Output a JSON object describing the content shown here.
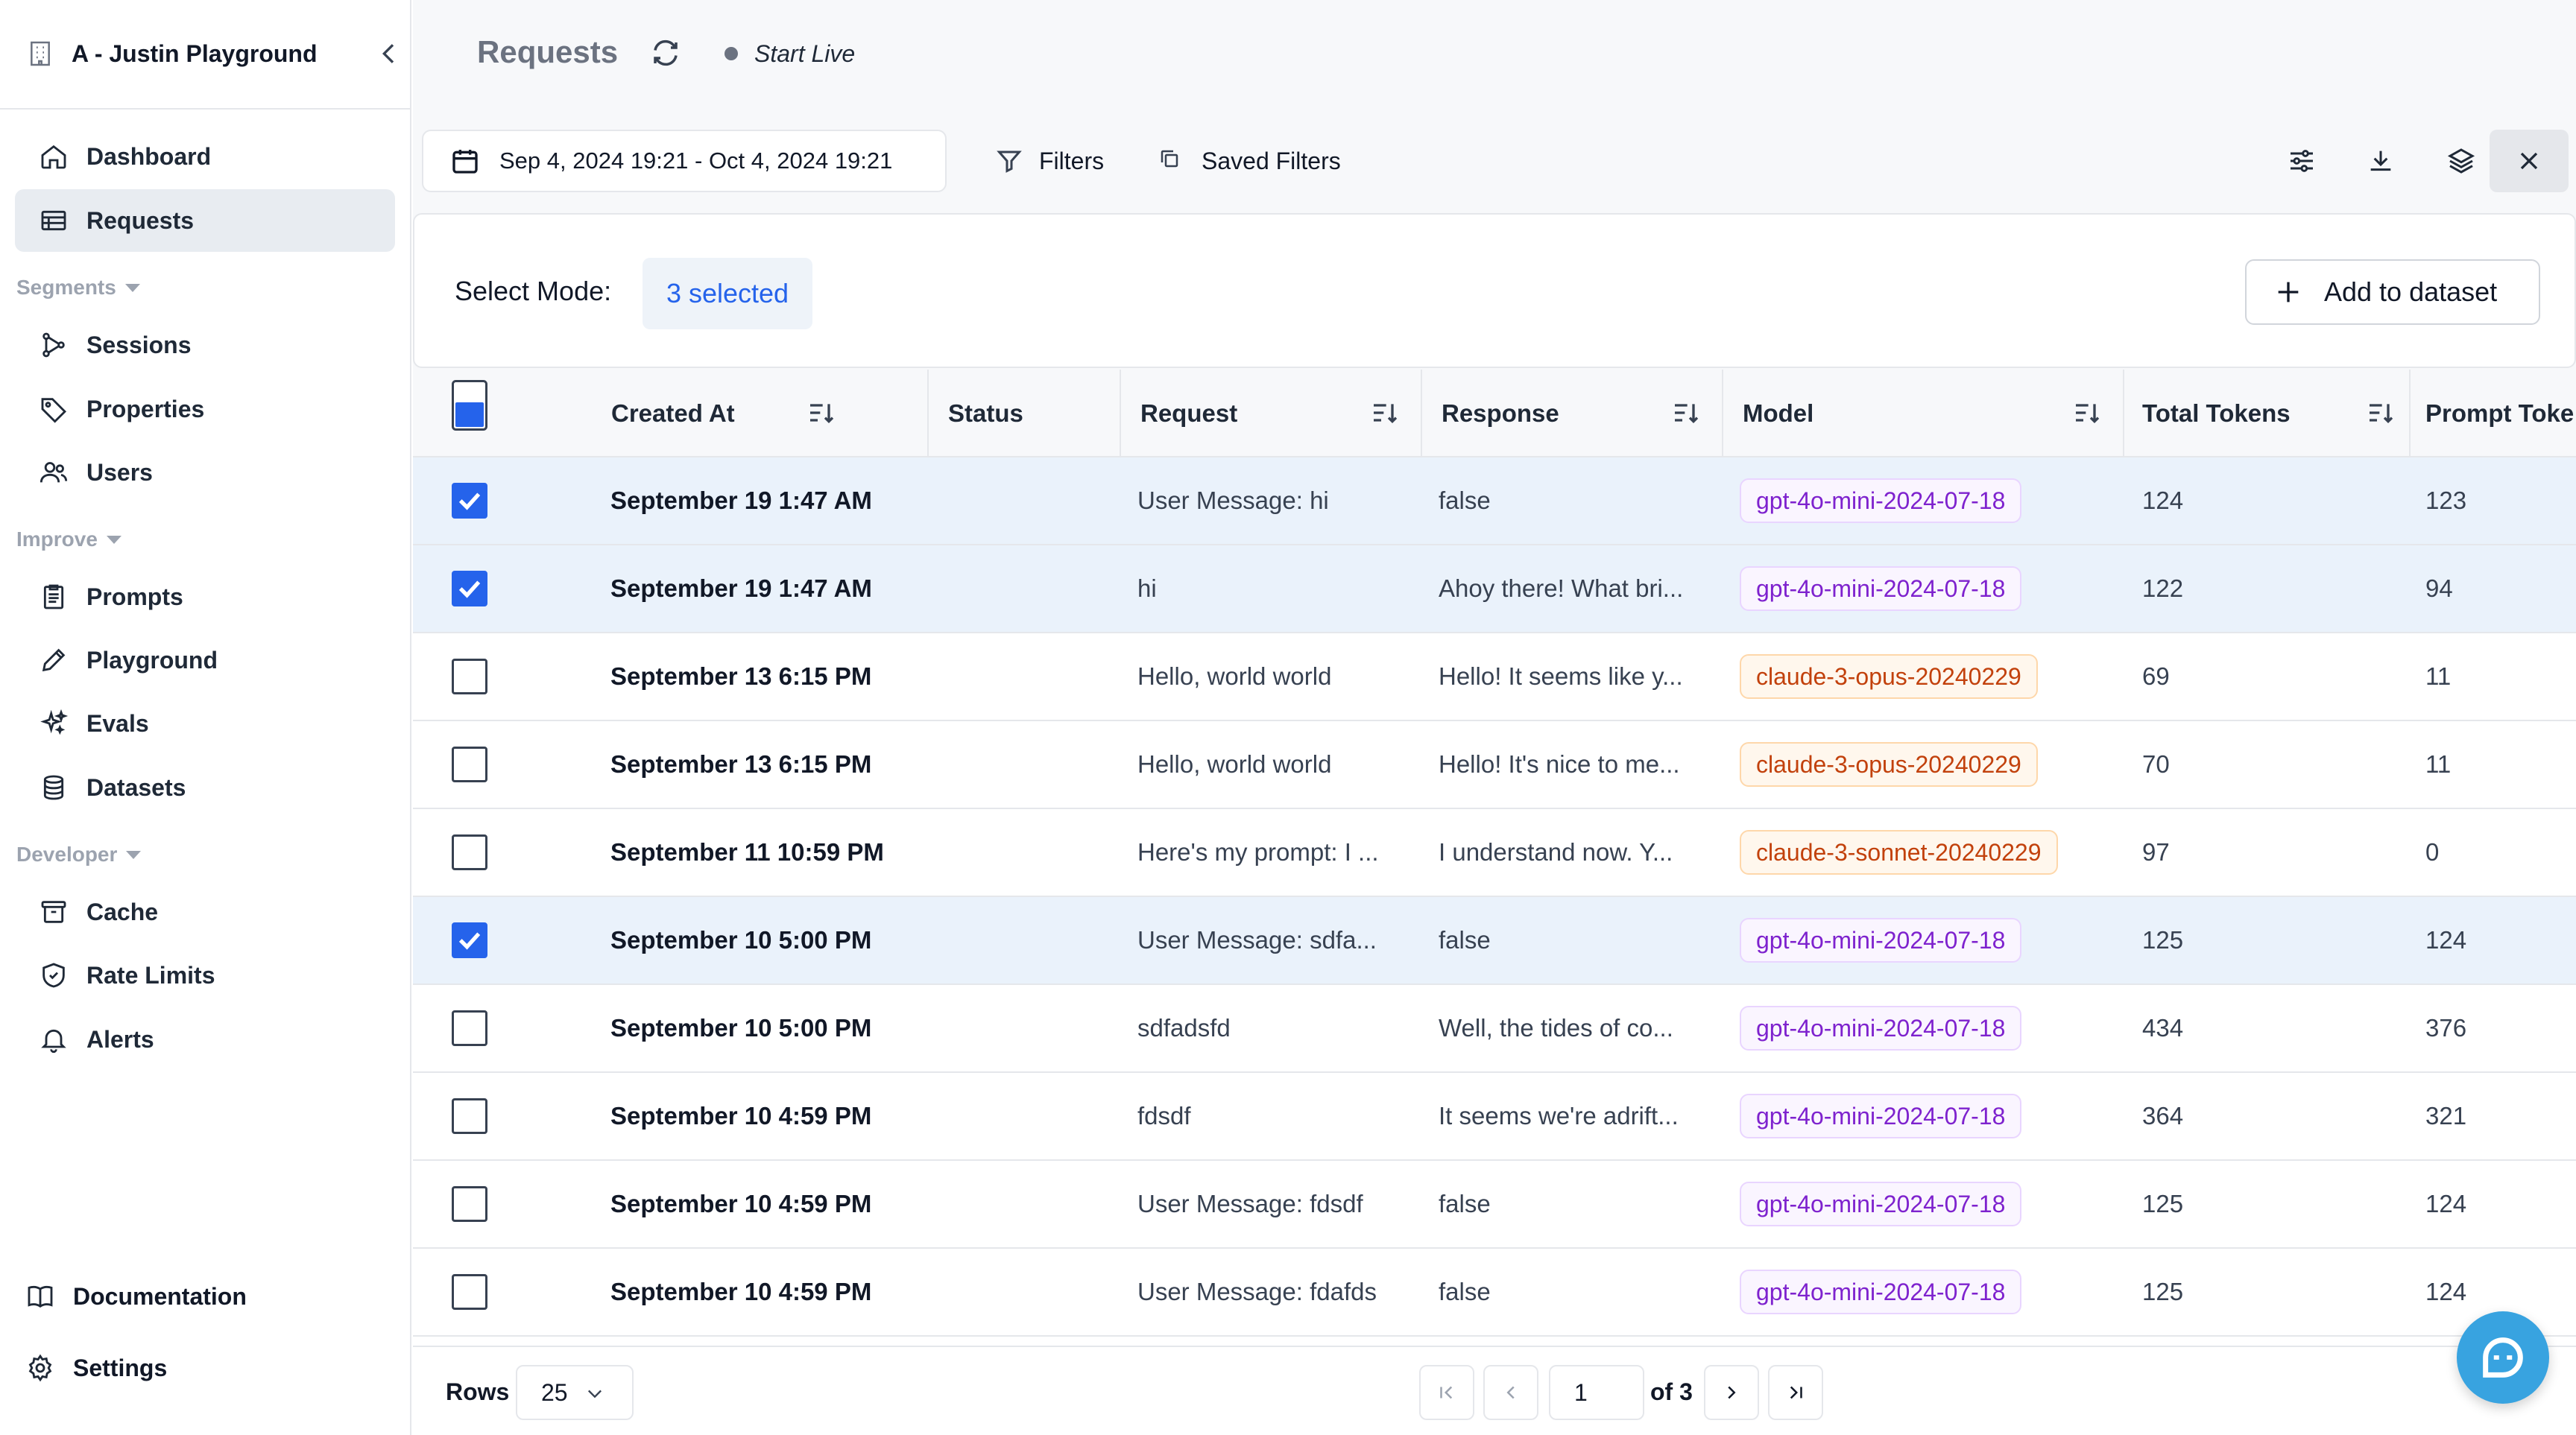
{
  "sidebar": {
    "org_name": "A - Justin Playground",
    "nav": [
      {
        "label": "Dashboard",
        "icon": "home-icon"
      },
      {
        "label": "Requests",
        "icon": "table-icon",
        "active": true
      }
    ],
    "sections": [
      {
        "title": "Segments",
        "items": [
          {
            "label": "Sessions",
            "icon": "sessions-icon"
          },
          {
            "label": "Properties",
            "icon": "tag-icon"
          },
          {
            "label": "Users",
            "icon": "users-icon"
          }
        ]
      },
      {
        "title": "Improve",
        "items": [
          {
            "label": "Prompts",
            "icon": "prompts-icon"
          },
          {
            "label": "Playground",
            "icon": "pencil-icon"
          },
          {
            "label": "Evals",
            "icon": "sparkles-icon"
          },
          {
            "label": "Datasets",
            "icon": "database-icon"
          }
        ]
      },
      {
        "title": "Developer",
        "items": [
          {
            "label": "Cache",
            "icon": "archive-icon"
          },
          {
            "label": "Rate Limits",
            "icon": "shield-icon"
          },
          {
            "label": "Alerts",
            "icon": "bell-icon"
          }
        ]
      }
    ],
    "footer": {
      "documentation": "Documentation",
      "settings": "Settings"
    }
  },
  "header": {
    "title": "Requests",
    "live_label": "Start Live"
  },
  "toolbar": {
    "date_range": "Sep 4, 2024 19:21 - Oct 4, 2024 19:21",
    "filters_label": "Filters",
    "saved_filters_label": "Saved Filters"
  },
  "select_bar": {
    "label": "Select Mode:",
    "selected_text": "3 selected",
    "add_button": "Add to dataset"
  },
  "table": {
    "columns": [
      "Created At",
      "Status",
      "Request",
      "Response",
      "Model",
      "Total Tokens",
      "Prompt Toke"
    ],
    "rows": [
      {
        "selected": true,
        "created_at": "September 19 1:47 AM",
        "status": "",
        "request": "User Message: hi",
        "response": "false",
        "model": "gpt-4o-mini-2024-07-18",
        "model_kind": "gpt",
        "total_tokens": "124",
        "prompt_tokens": "123"
      },
      {
        "selected": true,
        "created_at": "September 19 1:47 AM",
        "status": "",
        "request": "hi",
        "response": "Ahoy there! What bri...",
        "model": "gpt-4o-mini-2024-07-18",
        "model_kind": "gpt",
        "total_tokens": "122",
        "prompt_tokens": "94"
      },
      {
        "selected": false,
        "created_at": "September 13 6:15 PM",
        "status": "",
        "request": "Hello, world world",
        "response": "Hello! It seems like y...",
        "model": "claude-3-opus-20240229",
        "model_kind": "claude",
        "total_tokens": "69",
        "prompt_tokens": "11"
      },
      {
        "selected": false,
        "created_at": "September 13 6:15 PM",
        "status": "",
        "request": "Hello, world world",
        "response": "Hello! It's nice to me...",
        "model": "claude-3-opus-20240229",
        "model_kind": "claude",
        "total_tokens": "70",
        "prompt_tokens": "11"
      },
      {
        "selected": false,
        "created_at": "September 11 10:59 PM",
        "status": "",
        "request": "Here's my prompt: I ...",
        "response": "I understand now. Y...",
        "model": "claude-3-sonnet-20240229",
        "model_kind": "claude",
        "total_tokens": "97",
        "prompt_tokens": "0"
      },
      {
        "selected": true,
        "created_at": "September 10 5:00 PM",
        "status": "",
        "request": "User Message: sdfa...",
        "response": "false",
        "model": "gpt-4o-mini-2024-07-18",
        "model_kind": "gpt",
        "total_tokens": "125",
        "prompt_tokens": "124"
      },
      {
        "selected": false,
        "created_at": "September 10 5:00 PM",
        "status": "",
        "request": "sdfadsfd",
        "response": "Well, the tides of co...",
        "model": "gpt-4o-mini-2024-07-18",
        "model_kind": "gpt",
        "total_tokens": "434",
        "prompt_tokens": "376"
      },
      {
        "selected": false,
        "created_at": "September 10 4:59 PM",
        "status": "",
        "request": "fdsdf",
        "response": "It seems we're adrift...",
        "model": "gpt-4o-mini-2024-07-18",
        "model_kind": "gpt",
        "total_tokens": "364",
        "prompt_tokens": "321"
      },
      {
        "selected": false,
        "created_at": "September 10 4:59 PM",
        "status": "",
        "request": "User Message: fdsdf",
        "response": "false",
        "model": "gpt-4o-mini-2024-07-18",
        "model_kind": "gpt",
        "total_tokens": "125",
        "prompt_tokens": "124"
      },
      {
        "selected": false,
        "created_at": "September 10 4:59 PM",
        "status": "",
        "request": "User Message: fdafds",
        "response": "false",
        "model": "gpt-4o-mini-2024-07-18",
        "model_kind": "gpt",
        "total_tokens": "125",
        "prompt_tokens": "124"
      }
    ]
  },
  "pagination": {
    "rows_label": "Rows",
    "rows_per_page": "25",
    "current_page": "1",
    "of_label": "of 3"
  },
  "colors": {
    "accent": "#2563eb",
    "selected_row": "#eaf2fb",
    "gpt_badge": "#7e22ce",
    "claude_badge": "#c2410c",
    "chat_bubble": "#38a3e0"
  }
}
